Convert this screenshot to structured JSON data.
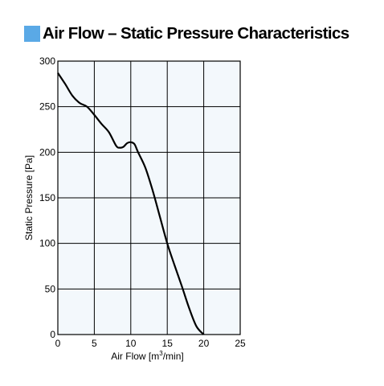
{
  "title": "Air Flow – Static Pressure Characteristics",
  "colors": {
    "title_marker": "#5aa9e6",
    "plot_background": "#f3f8fc",
    "grid": "#000000",
    "curve": "#000000"
  },
  "chart_data": {
    "type": "line",
    "title": "Air Flow – Static Pressure Characteristics",
    "xlabel": "Air Flow [m³/min]",
    "xlabel_parts": {
      "main": "Air Flow [m",
      "sup": "3",
      "tail": "/min]"
    },
    "ylabel": "Static Pressure [Pa]",
    "xlim": [
      0,
      25
    ],
    "ylim": [
      0,
      300
    ],
    "x_ticks": [
      0,
      5,
      10,
      15,
      20,
      25
    ],
    "y_ticks": [
      0,
      50,
      100,
      150,
      200,
      250,
      300
    ],
    "grid": true,
    "series": [
      {
        "x": [
          0,
          1,
          2,
          3,
          4,
          5,
          6,
          7,
          8,
          8.5,
          9,
          9.5,
          10,
          10.5,
          11,
          12,
          13,
          14,
          15,
          16,
          17,
          18,
          19,
          20
        ],
        "y": [
          287,
          275,
          262,
          254,
          250,
          241,
          231,
          222,
          207,
          205,
          206,
          210,
          211,
          209,
          200,
          183,
          158,
          129,
          100,
          76,
          53,
          29,
          9,
          0
        ]
      }
    ]
  }
}
